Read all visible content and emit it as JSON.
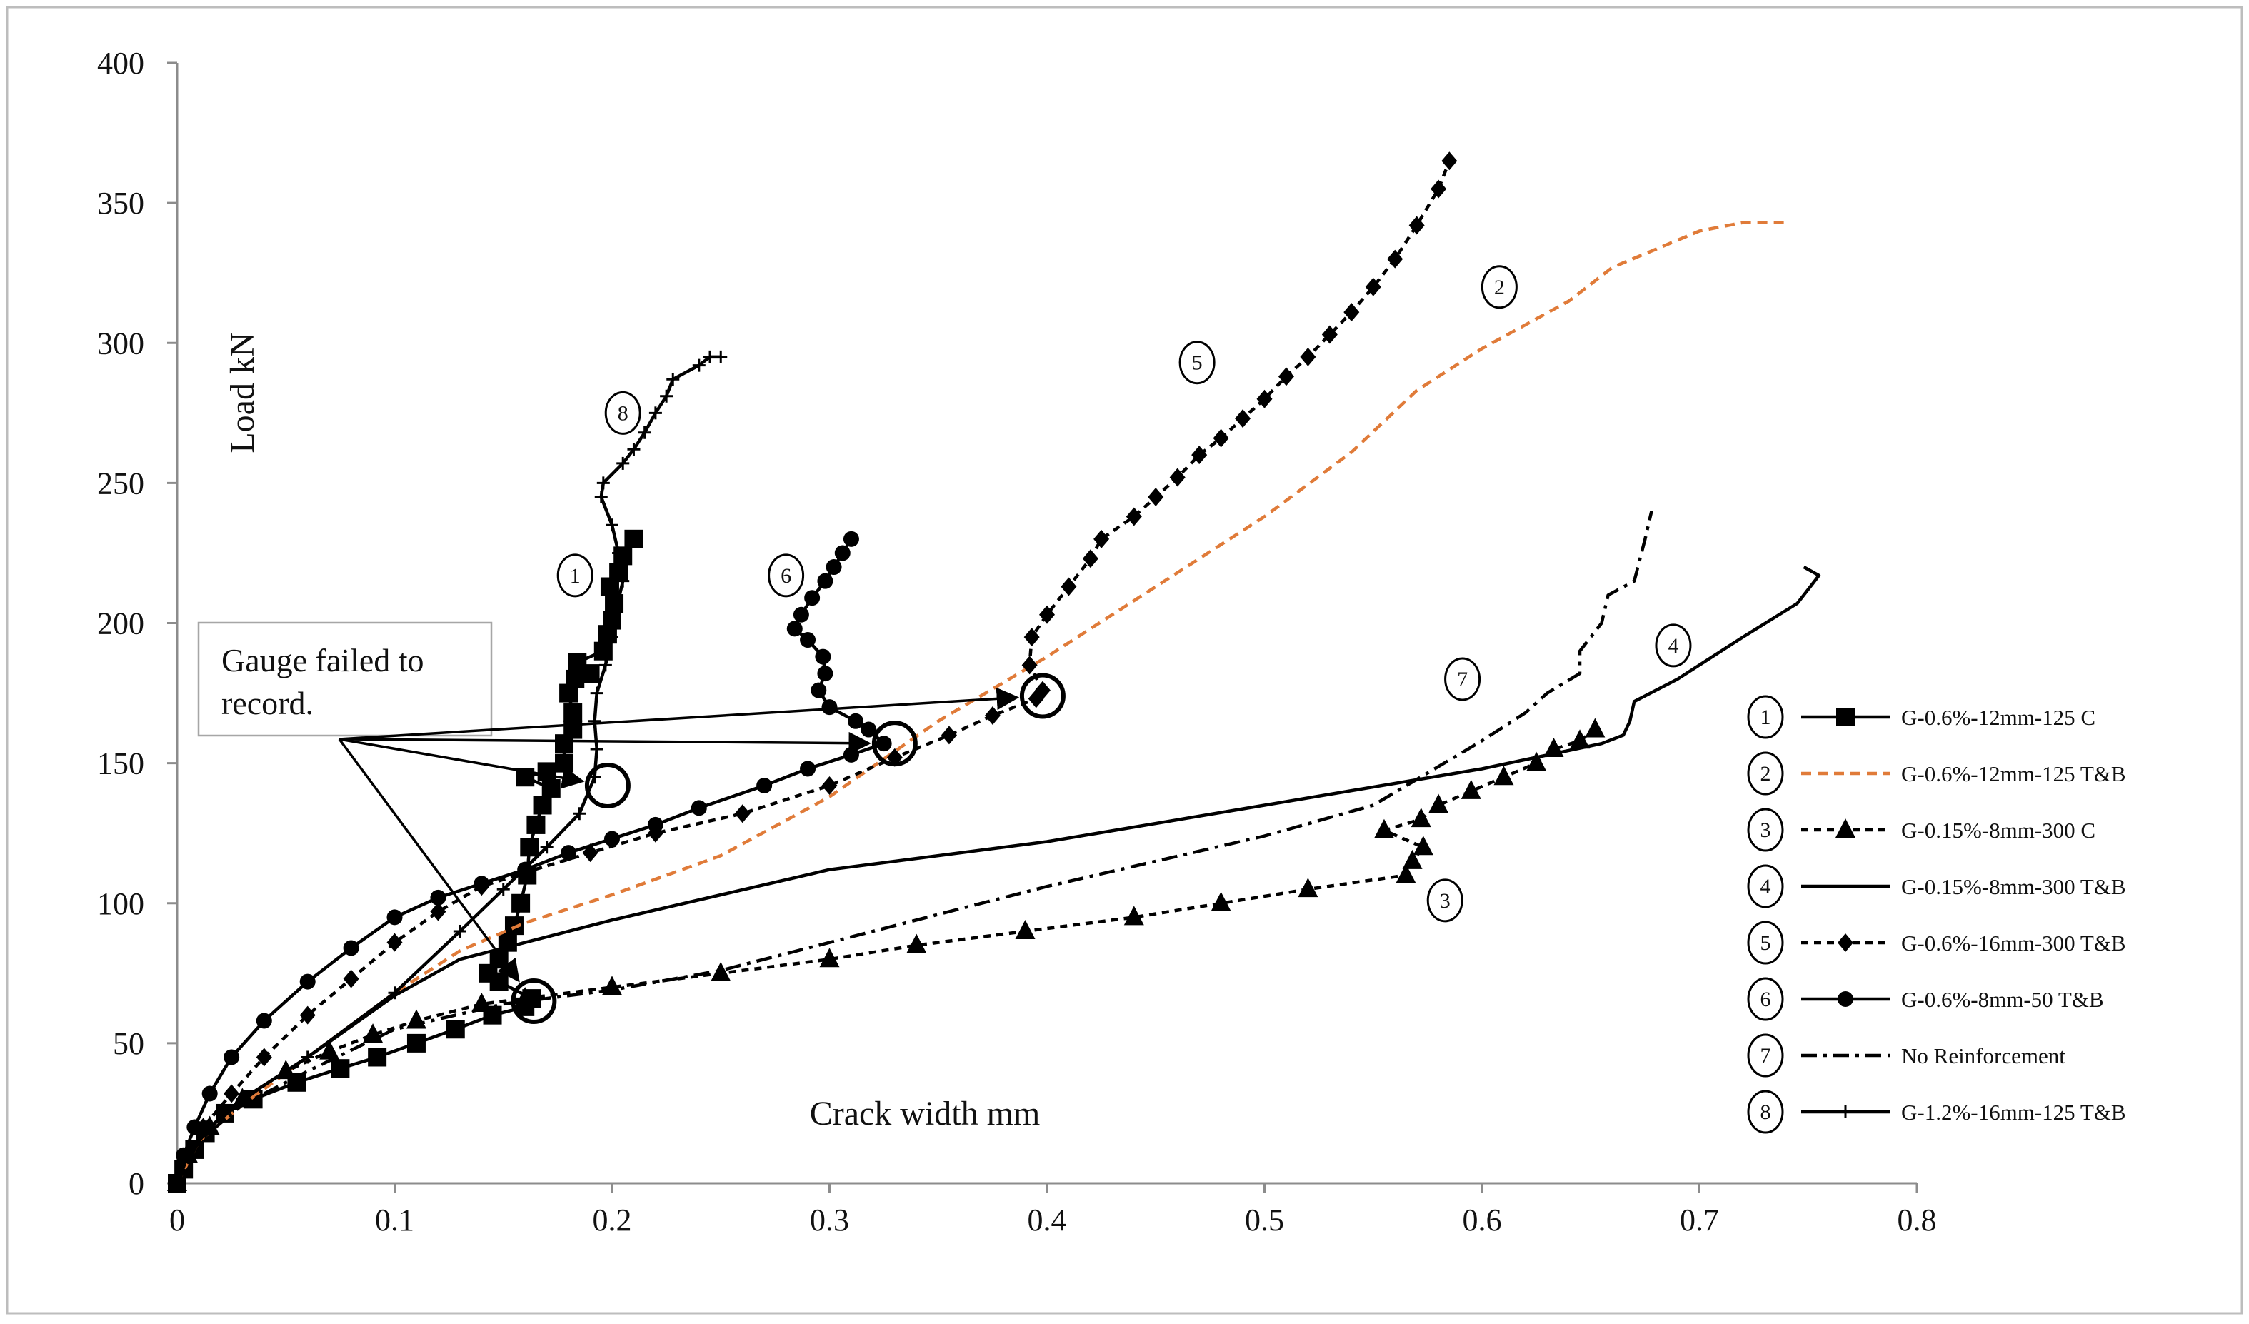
{
  "chart_data": {
    "type": "line",
    "xlabel": "Crack width mm",
    "ylabel": "Load kN",
    "xlim": [
      0,
      0.8
    ],
    "ylim": [
      0,
      400
    ],
    "x_ticks": [
      "0",
      "0.1",
      "0.2",
      "0.3",
      "0.4",
      "0.5",
      "0.6",
      "0.7",
      "0.8"
    ],
    "y_ticks": [
      "0",
      "50",
      "100",
      "150",
      "200",
      "250",
      "300",
      "350",
      "400"
    ],
    "grid": false,
    "legend_position": "right",
    "annotation": {
      "text_lines": [
        "Gauge failed to",
        "record."
      ],
      "targets": [
        [
          0.198,
          142
        ],
        [
          0.33,
          157
        ],
        [
          0.398,
          174
        ],
        [
          0.164,
          65
        ]
      ]
    },
    "series": [
      {
        "id": "1",
        "name": "G-0.6%-12mm-125 C",
        "color": "#000000",
        "dash": "",
        "marker": "square",
        "label_at": [
          0.183,
          217
        ],
        "points": [
          [
            0,
            0
          ],
          [
            0.003,
            5
          ],
          [
            0.008,
            12
          ],
          [
            0.013,
            18
          ],
          [
            0.022,
            25
          ],
          [
            0.035,
            30
          ],
          [
            0.055,
            36
          ],
          [
            0.075,
            41
          ],
          [
            0.092,
            45
          ],
          [
            0.11,
            50
          ],
          [
            0.128,
            55
          ],
          [
            0.145,
            60
          ],
          [
            0.16,
            63
          ],
          [
            0.163,
            66
          ],
          [
            0.148,
            72
          ],
          [
            0.143,
            75
          ],
          [
            0.148,
            80
          ],
          [
            0.152,
            86
          ],
          [
            0.155,
            92
          ],
          [
            0.158,
            100
          ],
          [
            0.161,
            110
          ],
          [
            0.162,
            120
          ],
          [
            0.165,
            128
          ],
          [
            0.168,
            135
          ],
          [
            0.172,
            141
          ],
          [
            0.16,
            145
          ],
          [
            0.17,
            147
          ],
          [
            0.178,
            150
          ],
          [
            0.178,
            157
          ],
          [
            0.182,
            162
          ],
          [
            0.182,
            168
          ],
          [
            0.18,
            175
          ],
          [
            0.183,
            180
          ],
          [
            0.19,
            182
          ],
          [
            0.184,
            186
          ],
          [
            0.196,
            190
          ],
          [
            0.198,
            196
          ],
          [
            0.2,
            201
          ],
          [
            0.201,
            207
          ],
          [
            0.199,
            213
          ],
          [
            0.203,
            218
          ],
          [
            0.205,
            224
          ],
          [
            0.21,
            230
          ]
        ]
      },
      {
        "id": "2",
        "name": "G-0.6%-12mm-125 T&B",
        "color": "#e07b39",
        "dash": "14,9",
        "marker": "none",
        "label_at": [
          0.608,
          320
        ],
        "points": [
          [
            0,
            0
          ],
          [
            0.01,
            15
          ],
          [
            0.03,
            28
          ],
          [
            0.06,
            45
          ],
          [
            0.1,
            68
          ],
          [
            0.13,
            83
          ],
          [
            0.16,
            93
          ],
          [
            0.2,
            103
          ],
          [
            0.25,
            117
          ],
          [
            0.3,
            138
          ],
          [
            0.35,
            165
          ],
          [
            0.4,
            188
          ],
          [
            0.44,
            208
          ],
          [
            0.5,
            238
          ],
          [
            0.54,
            261
          ],
          [
            0.57,
            283
          ],
          [
            0.6,
            298
          ],
          [
            0.64,
            315
          ],
          [
            0.66,
            327
          ],
          [
            0.7,
            340
          ],
          [
            0.72,
            343
          ],
          [
            0.74,
            343
          ]
        ]
      },
      {
        "id": "3",
        "name": "G-0.15%-8mm-300 C",
        "color": "#000000",
        "dash": "10,8",
        "marker": "triangle",
        "label_at": [
          0.583,
          101
        ],
        "points": [
          [
            0,
            0
          ],
          [
            0.005,
            10
          ],
          [
            0.015,
            20
          ],
          [
            0.03,
            30
          ],
          [
            0.05,
            40
          ],
          [
            0.07,
            47
          ],
          [
            0.09,
            53
          ],
          [
            0.11,
            58
          ],
          [
            0.14,
            64
          ],
          [
            0.16,
            66
          ],
          [
            0.2,
            70
          ],
          [
            0.25,
            75
          ],
          [
            0.3,
            80
          ],
          [
            0.34,
            85
          ],
          [
            0.39,
            90
          ],
          [
            0.44,
            95
          ],
          [
            0.48,
            100
          ],
          [
            0.52,
            105
          ],
          [
            0.565,
            110
          ],
          [
            0.568,
            115
          ],
          [
            0.573,
            120
          ],
          [
            0.555,
            126
          ],
          [
            0.572,
            130
          ],
          [
            0.58,
            135
          ],
          [
            0.595,
            140
          ],
          [
            0.61,
            145
          ],
          [
            0.625,
            150
          ],
          [
            0.633,
            155
          ],
          [
            0.645,
            158
          ],
          [
            0.652,
            162
          ]
        ]
      },
      {
        "id": "4",
        "name": "G-0.15%-8mm-300 T&B",
        "color": "#000000",
        "dash": "",
        "marker": "none",
        "label_at": [
          0.688,
          192
        ],
        "points": [
          [
            0,
            0
          ],
          [
            0.005,
            10
          ],
          [
            0.015,
            20
          ],
          [
            0.03,
            30
          ],
          [
            0.06,
            45
          ],
          [
            0.1,
            67
          ],
          [
            0.13,
            80
          ],
          [
            0.16,
            86
          ],
          [
            0.2,
            94
          ],
          [
            0.25,
            103
          ],
          [
            0.3,
            112
          ],
          [
            0.4,
            122
          ],
          [
            0.5,
            135
          ],
          [
            0.6,
            148
          ],
          [
            0.655,
            157
          ],
          [
            0.665,
            160
          ],
          [
            0.668,
            165
          ],
          [
            0.67,
            172
          ],
          [
            0.69,
            180
          ],
          [
            0.72,
            195
          ],
          [
            0.745,
            207
          ],
          [
            0.75,
            212
          ],
          [
            0.755,
            217
          ],
          [
            0.748,
            220
          ]
        ]
      },
      {
        "id": "5",
        "name": "G-0.6%-16mm-300 T&B",
        "color": "#000000",
        "dash": "10,8",
        "marker": "diamond",
        "label_at": [
          0.469,
          293
        ],
        "points": [
          [
            0,
            0
          ],
          [
            0.005,
            10
          ],
          [
            0.012,
            20
          ],
          [
            0.025,
            32
          ],
          [
            0.04,
            45
          ],
          [
            0.06,
            60
          ],
          [
            0.08,
            73
          ],
          [
            0.1,
            86
          ],
          [
            0.12,
            97
          ],
          [
            0.14,
            106
          ],
          [
            0.16,
            111
          ],
          [
            0.19,
            118
          ],
          [
            0.22,
            125
          ],
          [
            0.26,
            132
          ],
          [
            0.3,
            142
          ],
          [
            0.33,
            152
          ],
          [
            0.355,
            160
          ],
          [
            0.375,
            167
          ],
          [
            0.395,
            173
          ],
          [
            0.398,
            176
          ],
          [
            0.392,
            185
          ],
          [
            0.393,
            195
          ],
          [
            0.4,
            203
          ],
          [
            0.41,
            213
          ],
          [
            0.42,
            223
          ],
          [
            0.425,
            230
          ],
          [
            0.44,
            238
          ],
          [
            0.45,
            245
          ],
          [
            0.46,
            252
          ],
          [
            0.47,
            260
          ],
          [
            0.48,
            266
          ],
          [
            0.49,
            273
          ],
          [
            0.5,
            280
          ],
          [
            0.51,
            288
          ],
          [
            0.52,
            295
          ],
          [
            0.53,
            303
          ],
          [
            0.54,
            311
          ],
          [
            0.55,
            320
          ],
          [
            0.56,
            330
          ],
          [
            0.57,
            342
          ],
          [
            0.58,
            355
          ],
          [
            0.585,
            365
          ]
        ]
      },
      {
        "id": "6",
        "name": "G-0.6%-8mm-50 T&B",
        "color": "#000000",
        "dash": "",
        "marker": "circle",
        "label_at": [
          0.28,
          217
        ],
        "points": [
          [
            0,
            0
          ],
          [
            0.003,
            10
          ],
          [
            0.008,
            20
          ],
          [
            0.015,
            32
          ],
          [
            0.025,
            45
          ],
          [
            0.04,
            58
          ],
          [
            0.06,
            72
          ],
          [
            0.08,
            84
          ],
          [
            0.1,
            95
          ],
          [
            0.12,
            102
          ],
          [
            0.14,
            107
          ],
          [
            0.16,
            112
          ],
          [
            0.18,
            118
          ],
          [
            0.2,
            123
          ],
          [
            0.22,
            128
          ],
          [
            0.24,
            134
          ],
          [
            0.27,
            142
          ],
          [
            0.29,
            148
          ],
          [
            0.31,
            153
          ],
          [
            0.325,
            157
          ],
          [
            0.318,
            162
          ],
          [
            0.312,
            165
          ],
          [
            0.3,
            170
          ],
          [
            0.295,
            176
          ],
          [
            0.298,
            182
          ],
          [
            0.297,
            188
          ],
          [
            0.29,
            194
          ],
          [
            0.284,
            198
          ],
          [
            0.287,
            203
          ],
          [
            0.292,
            209
          ],
          [
            0.298,
            215
          ],
          [
            0.302,
            220
          ],
          [
            0.306,
            225
          ],
          [
            0.31,
            230
          ]
        ]
      },
      {
        "id": "7",
        "name": "No Reinforcement",
        "color": "#000000",
        "dash": "22,9,5,9",
        "marker": "none",
        "label_at": [
          0.591,
          180
        ],
        "points": [
          [
            0,
            0
          ],
          [
            0.01,
            15
          ],
          [
            0.03,
            28
          ],
          [
            0.06,
            40
          ],
          [
            0.1,
            55
          ],
          [
            0.15,
            64
          ],
          [
            0.2,
            69
          ],
          [
            0.25,
            76
          ],
          [
            0.3,
            86
          ],
          [
            0.35,
            96
          ],
          [
            0.4,
            106
          ],
          [
            0.45,
            115
          ],
          [
            0.5,
            124
          ],
          [
            0.55,
            135
          ],
          [
            0.6,
            158
          ],
          [
            0.62,
            168
          ],
          [
            0.63,
            175
          ],
          [
            0.645,
            182
          ],
          [
            0.645,
            190
          ],
          [
            0.655,
            200
          ],
          [
            0.658,
            210
          ],
          [
            0.67,
            215
          ],
          [
            0.675,
            230
          ],
          [
            0.678,
            240
          ]
        ]
      },
      {
        "id": "8",
        "name": "G-1.2%-16mm-125 T&B",
        "color": "#000000",
        "dash": "",
        "marker": "plus",
        "label_at": [
          0.205,
          275
        ],
        "points": [
          [
            0,
            0
          ],
          [
            0.005,
            10
          ],
          [
            0.015,
            20
          ],
          [
            0.03,
            30
          ],
          [
            0.06,
            45
          ],
          [
            0.1,
            68
          ],
          [
            0.13,
            90
          ],
          [
            0.15,
            105
          ],
          [
            0.17,
            120
          ],
          [
            0.185,
            132
          ],
          [
            0.192,
            145
          ],
          [
            0.193,
            155
          ],
          [
            0.192,
            165
          ],
          [
            0.193,
            175
          ],
          [
            0.197,
            185
          ],
          [
            0.2,
            195
          ],
          [
            0.202,
            205
          ],
          [
            0.205,
            215
          ],
          [
            0.203,
            225
          ],
          [
            0.2,
            235
          ],
          [
            0.195,
            245
          ],
          [
            0.196,
            250
          ],
          [
            0.205,
            257
          ],
          [
            0.21,
            262
          ],
          [
            0.215,
            268
          ],
          [
            0.22,
            275
          ],
          [
            0.225,
            281
          ],
          [
            0.228,
            287
          ],
          [
            0.24,
            292
          ],
          [
            0.245,
            295
          ],
          [
            0.25,
            295
          ]
        ]
      }
    ]
  }
}
